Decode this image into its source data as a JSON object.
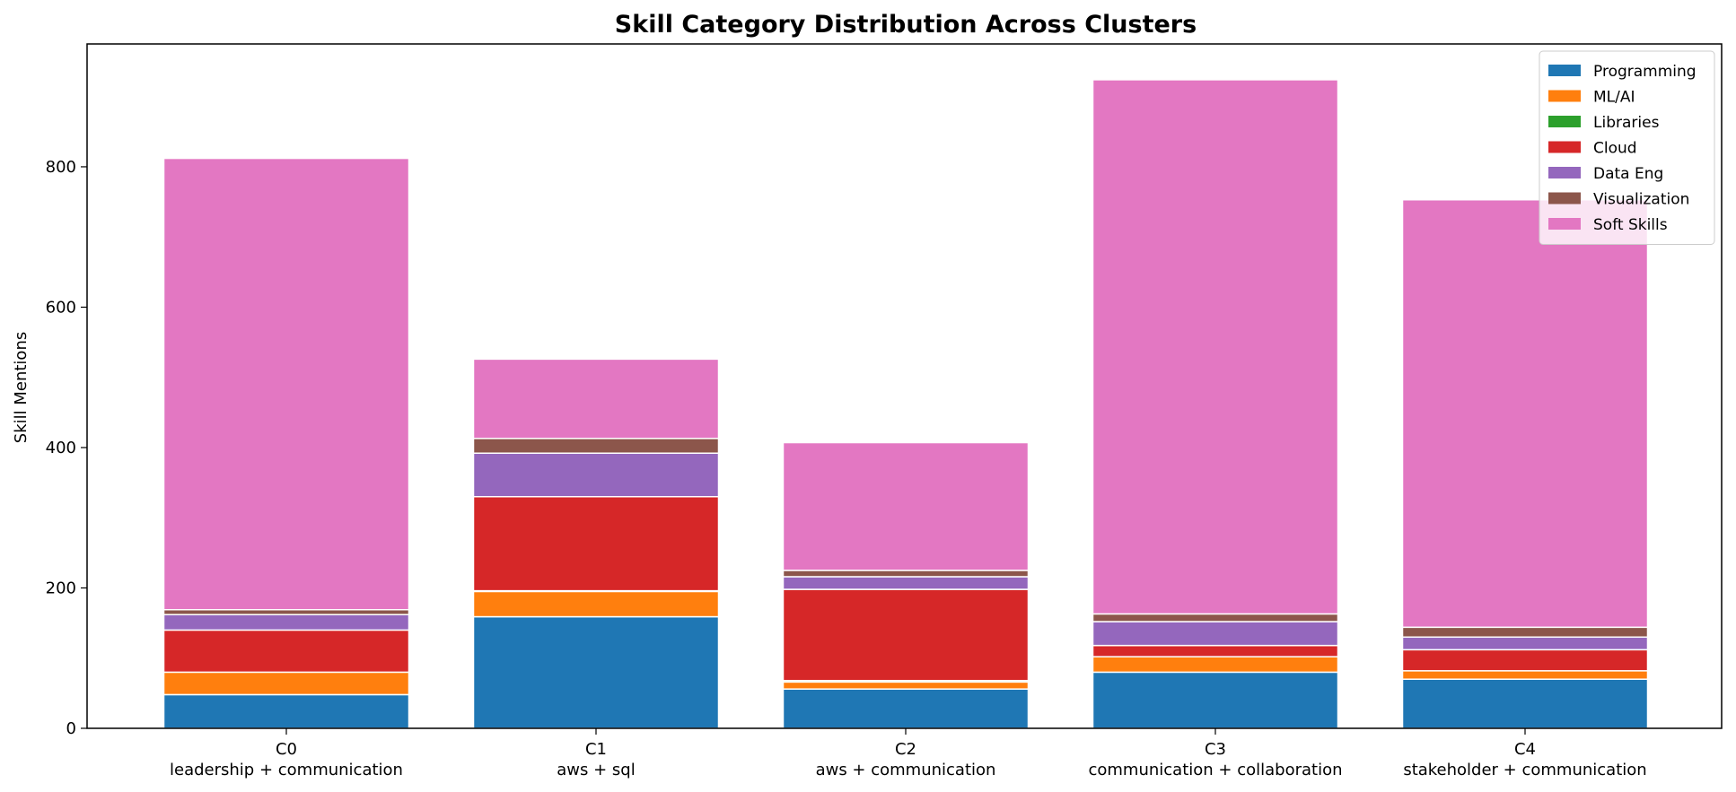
{
  "chart_data": {
    "type": "bar",
    "stacked": true,
    "title": "Skill Category Distribution Across Clusters",
    "xlabel": "",
    "ylabel": "Skill Mentions",
    "ylim": [
      0,
      975
    ],
    "yticks": [
      0,
      200,
      400,
      600,
      800
    ],
    "grid": false,
    "legend_position": "top-right",
    "categories": [
      "C0",
      "C1",
      "C2",
      "C3",
      "C4"
    ],
    "category_sublabels": [
      "leadership + communication",
      "aws + sql",
      "aws + communication",
      "communication + collaboration",
      "stakeholder + communication"
    ],
    "series": [
      {
        "name": "Programming",
        "color": "#1f77b4",
        "values": [
          48,
          159,
          56,
          80,
          70
        ]
      },
      {
        "name": "ML/AI",
        "color": "#ff7f0e",
        "values": [
          32,
          36,
          10,
          22,
          12
        ]
      },
      {
        "name": "Libraries",
        "color": "#2ca02c",
        "values": [
          0,
          1,
          2,
          0,
          0
        ]
      },
      {
        "name": "Cloud",
        "color": "#d62728",
        "values": [
          60,
          134,
          130,
          16,
          30
        ]
      },
      {
        "name": "Data Eng",
        "color": "#9467bd",
        "values": [
          22,
          62,
          18,
          34,
          18
        ]
      },
      {
        "name": "Visualization",
        "color": "#8c564b",
        "values": [
          7,
          21,
          9,
          11,
          14
        ]
      },
      {
        "name": "Soft Skills",
        "color": "#e377c2",
        "values": [
          643,
          113,
          182,
          761,
          609
        ]
      }
    ]
  }
}
